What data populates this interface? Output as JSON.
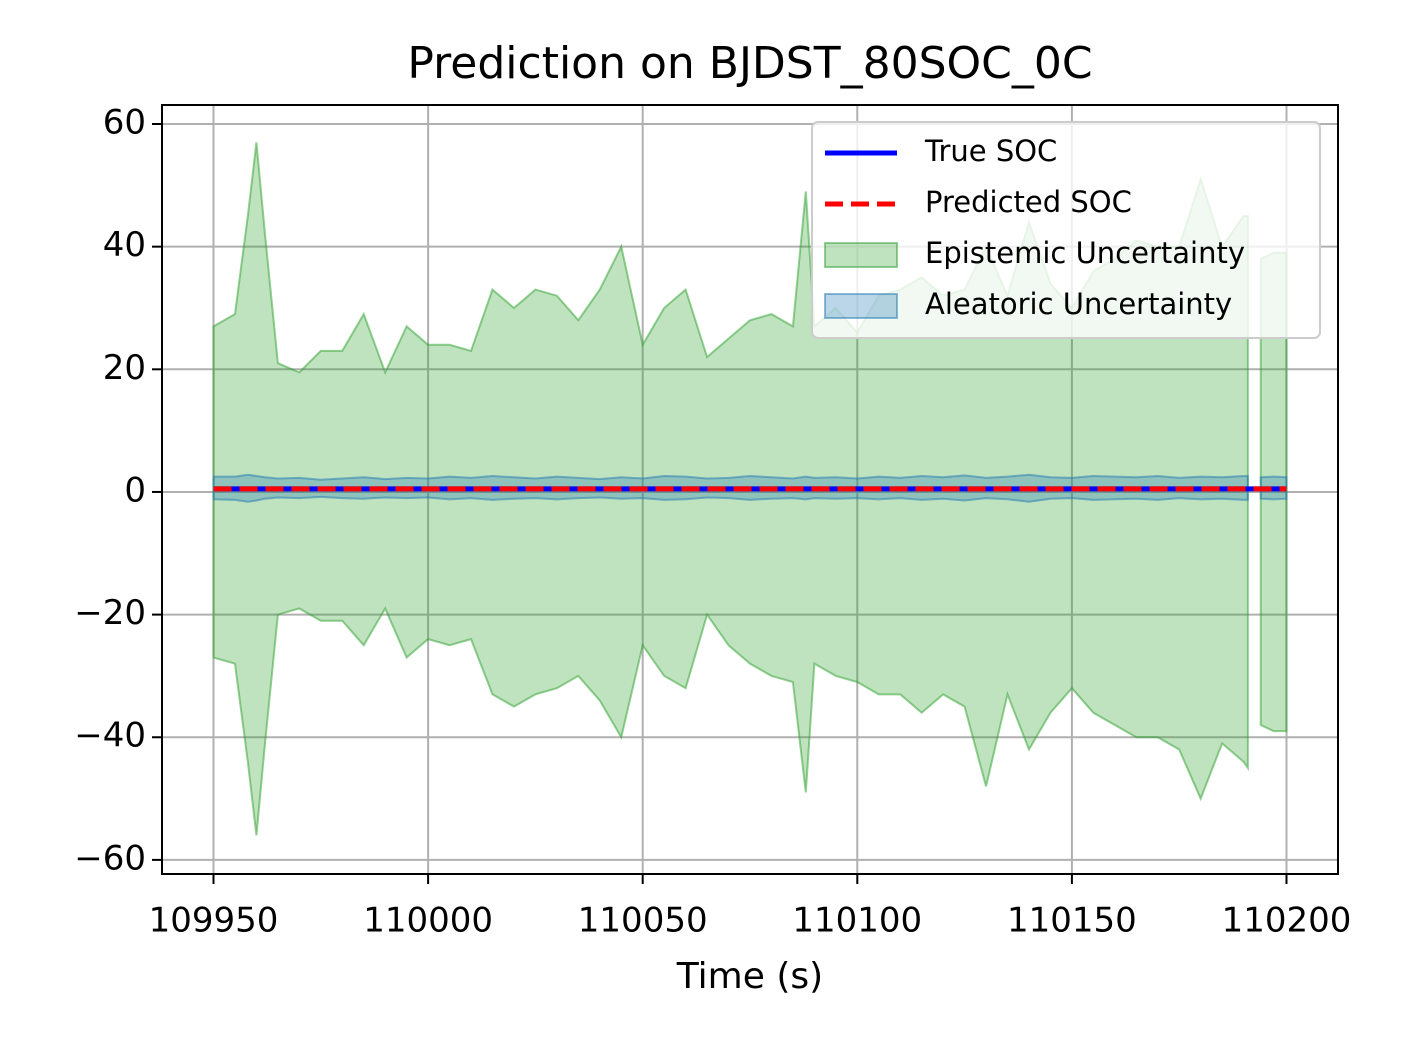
{
  "chart_data": {
    "type": "line",
    "title": "Prediction on BJDST_80SOC_0C",
    "xlabel": "Time (s)",
    "x": [
      109950,
      109955,
      109958,
      109960,
      109962,
      109965,
      109970,
      109975,
      109980,
      109985,
      109990,
      109995,
      110000,
      110005,
      110010,
      110015,
      110020,
      110025,
      110030,
      110035,
      110040,
      110045,
      110050,
      110055,
      110060,
      110065,
      110070,
      110075,
      110080,
      110085,
      110088,
      110090,
      110095,
      110100,
      110105,
      110110,
      110115,
      110120,
      110125,
      110130,
      110135,
      110140,
      110145,
      110150,
      110155,
      110160,
      110165,
      110170,
      110175,
      110180,
      110185,
      110190,
      110191,
      110193,
      110194,
      110197,
      110200
    ],
    "series": [
      {
        "name": "Epistemic Uncertainty",
        "color": "#2ca02c",
        "fill_alpha": 0.3,
        "upper": [
          27,
          29,
          45,
          57,
          42,
          21,
          19.5,
          23,
          23,
          29,
          19.5,
          27,
          24,
          24,
          23,
          33,
          30,
          33,
          32,
          28,
          33,
          40,
          24,
          30,
          33,
          22,
          25,
          28,
          29,
          27,
          49,
          27,
          30,
          26,
          32,
          33,
          35,
          32,
          33,
          40,
          32,
          44,
          34,
          30,
          36,
          38,
          41,
          40,
          40,
          51,
          40,
          45,
          45,
          null,
          38,
          39,
          39
        ],
        "lower": [
          -27,
          -28,
          -44,
          -56,
          -41,
          -20,
          -19,
          -21,
          -21,
          -25,
          -19,
          -27,
          -24,
          -25,
          -24,
          -33,
          -35,
          -33,
          -32,
          -30,
          -34,
          -40,
          -25,
          -30,
          -32,
          -20,
          -25,
          -28,
          -30,
          -31,
          -49,
          -28,
          -30,
          -31,
          -33,
          -33,
          -36,
          -33,
          -35,
          -48,
          -33,
          -42,
          -36,
          -32,
          -36,
          -38,
          -40,
          -40,
          -42,
          -50,
          -41,
          -44,
          -45,
          null,
          -38,
          -39,
          -39
        ]
      },
      {
        "name": "Aleatoric Uncertainty",
        "color": "#1f77b4",
        "fill_alpha": 0.3,
        "upper": [
          2.5,
          2.5,
          2.8,
          2.6,
          2.4,
          2.2,
          2.3,
          2,
          2.2,
          2.4,
          2.1,
          2.3,
          2.2,
          2.5,
          2.3,
          2.6,
          2.4,
          2.2,
          2.5,
          2.3,
          2.1,
          2.4,
          2.2,
          2.6,
          2.5,
          2.2,
          2.3,
          2.6,
          2.4,
          2.2,
          2.5,
          2.3,
          2.4,
          2.2,
          2.5,
          2.3,
          2.6,
          2.4,
          2.7,
          2.3,
          2.5,
          2.8,
          2.4,
          2.3,
          2.6,
          2.5,
          2.4,
          2.6,
          2.3,
          2.5,
          2.4,
          2.6,
          2.6,
          null,
          2.4,
          2.5,
          2.4
        ],
        "lower": [
          -1.2,
          -1.3,
          -1.6,
          -1.4,
          -1.1,
          -0.9,
          -1,
          -0.8,
          -1,
          -1.1,
          -0.9,
          -1,
          -0.9,
          -1.2,
          -1,
          -1.3,
          -1.1,
          -1,
          -1.2,
          -1,
          -0.9,
          -1.1,
          -1,
          -1.3,
          -1.2,
          -0.9,
          -1,
          -1.3,
          -1.1,
          -1,
          -1.2,
          -1,
          -1.1,
          -1,
          -1.2,
          -1,
          -1.3,
          -1.1,
          -1.4,
          -1,
          -1.2,
          -1.6,
          -1.1,
          -1,
          -1.3,
          -1.2,
          -1.1,
          -1.3,
          -1,
          -1.2,
          -1.1,
          -1.3,
          -1.3,
          null,
          -1.1,
          -1.2,
          -1.1
        ]
      },
      {
        "name": "True SOC",
        "color": "#0000ff",
        "linestyle": "solid",
        "values": [
          0.5,
          0.5,
          0.5,
          0.5,
          0.5,
          0.5,
          0.5,
          0.5,
          0.5,
          0.5,
          0.5,
          0.5,
          0.5,
          0.5,
          0.5,
          0.5,
          0.5,
          0.5,
          0.5,
          0.5,
          0.5,
          0.5,
          0.5,
          0.5,
          0.5,
          0.5,
          0.5,
          0.5,
          0.5,
          0.5,
          0.5,
          0.5,
          0.5,
          0.5,
          0.5,
          0.5,
          0.5,
          0.5,
          0.5,
          0.5,
          0.5,
          0.5,
          0.5,
          0.5,
          0.5,
          0.5,
          0.5,
          0.5,
          0.5,
          0.5,
          0.5,
          0.5,
          0.5,
          0.5,
          0.5,
          0.5,
          0.5
        ]
      },
      {
        "name": "Predicted SOC",
        "color": "#ff0000",
        "linestyle": "dashed",
        "values": [
          0.5,
          0.5,
          0.5,
          0.5,
          0.5,
          0.5,
          0.5,
          0.5,
          0.5,
          0.5,
          0.5,
          0.5,
          0.5,
          0.5,
          0.5,
          0.5,
          0.5,
          0.5,
          0.5,
          0.5,
          0.5,
          0.5,
          0.5,
          0.5,
          0.5,
          0.5,
          0.5,
          0.5,
          0.5,
          0.5,
          0.5,
          0.5,
          0.5,
          0.5,
          0.5,
          0.5,
          0.5,
          0.5,
          0.5,
          0.5,
          0.5,
          0.5,
          0.5,
          0.5,
          0.5,
          0.5,
          0.5,
          0.5,
          0.5,
          0.5,
          0.5,
          0.5,
          0.5,
          0.5,
          0.5,
          0.5,
          0.5
        ]
      }
    ],
    "legend_order": [
      "True SOC",
      "Predicted SOC",
      "Epistemic Uncertainty",
      "Aleatoric Uncertainty"
    ],
    "xlim": [
      109938,
      110212
    ],
    "ylim": [
      -62.3,
      63.1
    ],
    "xticks": [
      109950,
      110000,
      110050,
      110100,
      110150,
      110200
    ],
    "yticks": [
      {
        "value": -60,
        "label": "−60"
      },
      {
        "value": -40,
        "label": "−40"
      },
      {
        "value": -20,
        "label": "−20"
      },
      0,
      20,
      40,
      60
    ],
    "grid": true,
    "legend": "upper right"
  }
}
